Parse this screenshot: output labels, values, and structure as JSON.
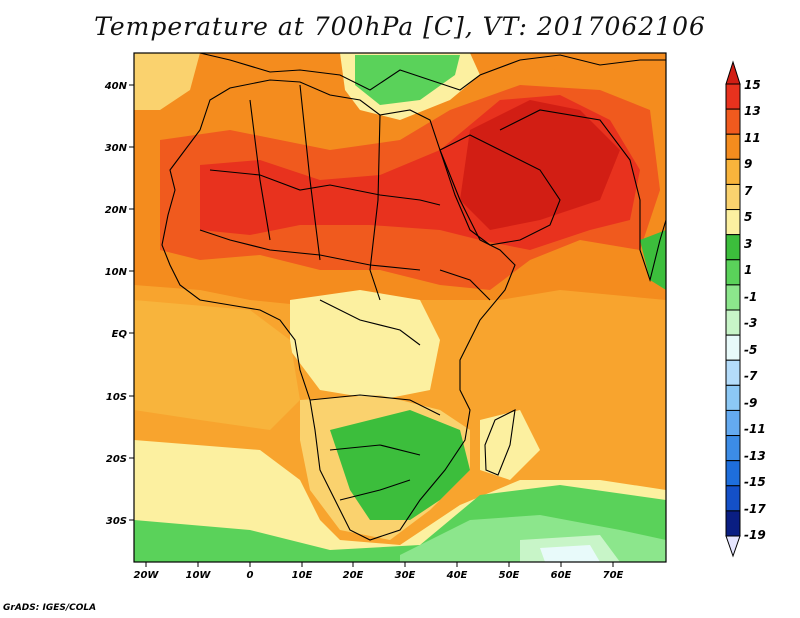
{
  "title": "Temperature at 700hPa [C], VT: 2017062106",
  "credit": "GrADS: IGES/COLA",
  "map": {
    "lat_labels": [
      "40N",
      "30N",
      "20N",
      "10N",
      "EQ",
      "10S",
      "20S",
      "30S"
    ],
    "lon_labels": [
      "20W",
      "10W",
      "0",
      "10E",
      "20E",
      "30E",
      "40E",
      "50E",
      "60E",
      "70E"
    ]
  },
  "colorbar": {
    "labels": [
      "15",
      "13",
      "11",
      "9",
      "7",
      "5",
      "3",
      "1",
      "-1",
      "-3",
      "-5",
      "-7",
      "-9",
      "-11",
      "-13",
      "-15",
      "-17",
      "-19"
    ],
    "colors": [
      "#e8321e",
      "#f05a1e",
      "#f48c1e",
      "#f8b43c",
      "#fad26e",
      "#fcf0a0",
      "#3cbe3c",
      "#5ad25a",
      "#8ce68c",
      "#c8f5c8",
      "#e8fafa",
      "#b4dcfa",
      "#8cc8f5",
      "#64aaf0",
      "#3c8ce6",
      "#1e6edc",
      "#1450c8",
      "#0a1e82"
    ],
    "top_color": "#d21e14",
    "bottom_color": "#e6e6ff"
  }
}
